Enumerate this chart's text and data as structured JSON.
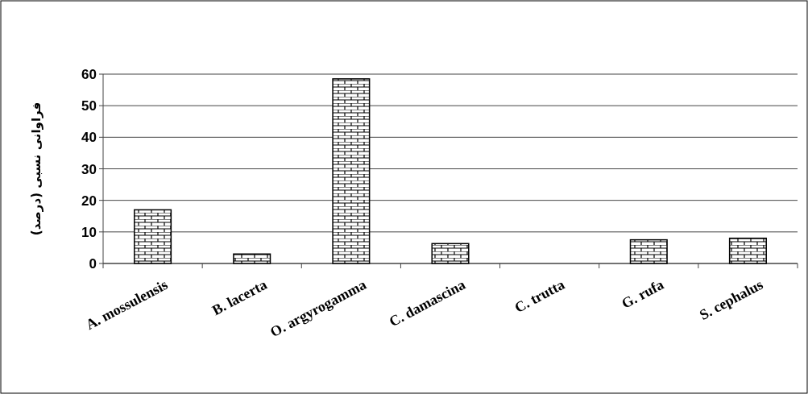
{
  "chart_data": {
    "type": "bar",
    "ylabel": "فراوانی نسبی (درصد)",
    "categories": [
      "A. mossulensis",
      "B.  lacerta",
      "O. argyrogamma",
      "C.  damascina",
      "C.  trutta",
      "G. rufa",
      "S. cephalus"
    ],
    "values": [
      17,
      3,
      58.5,
      6.3,
      0,
      7.5,
      8
    ],
    "color": "#000000",
    "ylim": [
      0,
      60
    ],
    "yticks": [
      0,
      10,
      20,
      30,
      40,
      50,
      60
    ],
    "grid": "y"
  }
}
